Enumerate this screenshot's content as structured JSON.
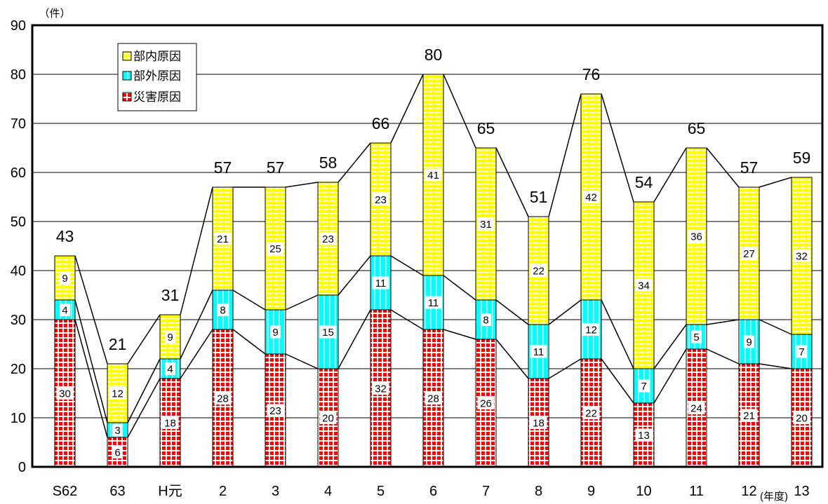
{
  "chart_data": {
    "type": "bar",
    "stacked": true,
    "xlabel": "(年度)",
    "ylabel": "（件）",
    "categories": [
      "S62",
      "63",
      "H元",
      "2",
      "3",
      "4",
      "5",
      "6",
      "7",
      "8",
      "9",
      "10",
      "11",
      "12",
      "13"
    ],
    "series": [
      {
        "name": "災害原因",
        "color": "#ff0000",
        "values": [
          30,
          6,
          18,
          28,
          23,
          20,
          32,
          28,
          26,
          18,
          22,
          13,
          24,
          21,
          20
        ]
      },
      {
        "name": "部外原因",
        "color": "#00ffff",
        "values": [
          4,
          3,
          4,
          8,
          9,
          15,
          11,
          11,
          8,
          11,
          12,
          7,
          5,
          9,
          7
        ]
      },
      {
        "name": "部内原因",
        "color": "#ffff00",
        "values": [
          9,
          12,
          9,
          21,
          25,
          23,
          23,
          41,
          31,
          22,
          42,
          34,
          36,
          27,
          32
        ]
      }
    ],
    "totals": [
      43,
      21,
      31,
      57,
      57,
      58,
      66,
      80,
      65,
      51,
      76,
      54,
      65,
      57,
      59
    ],
    "ylim": [
      0,
      90
    ],
    "yticks": [
      0,
      10,
      20,
      30,
      40,
      50,
      60,
      70,
      80,
      90
    ],
    "grid": true,
    "legend_position": "top-left",
    "series_lines": true
  }
}
